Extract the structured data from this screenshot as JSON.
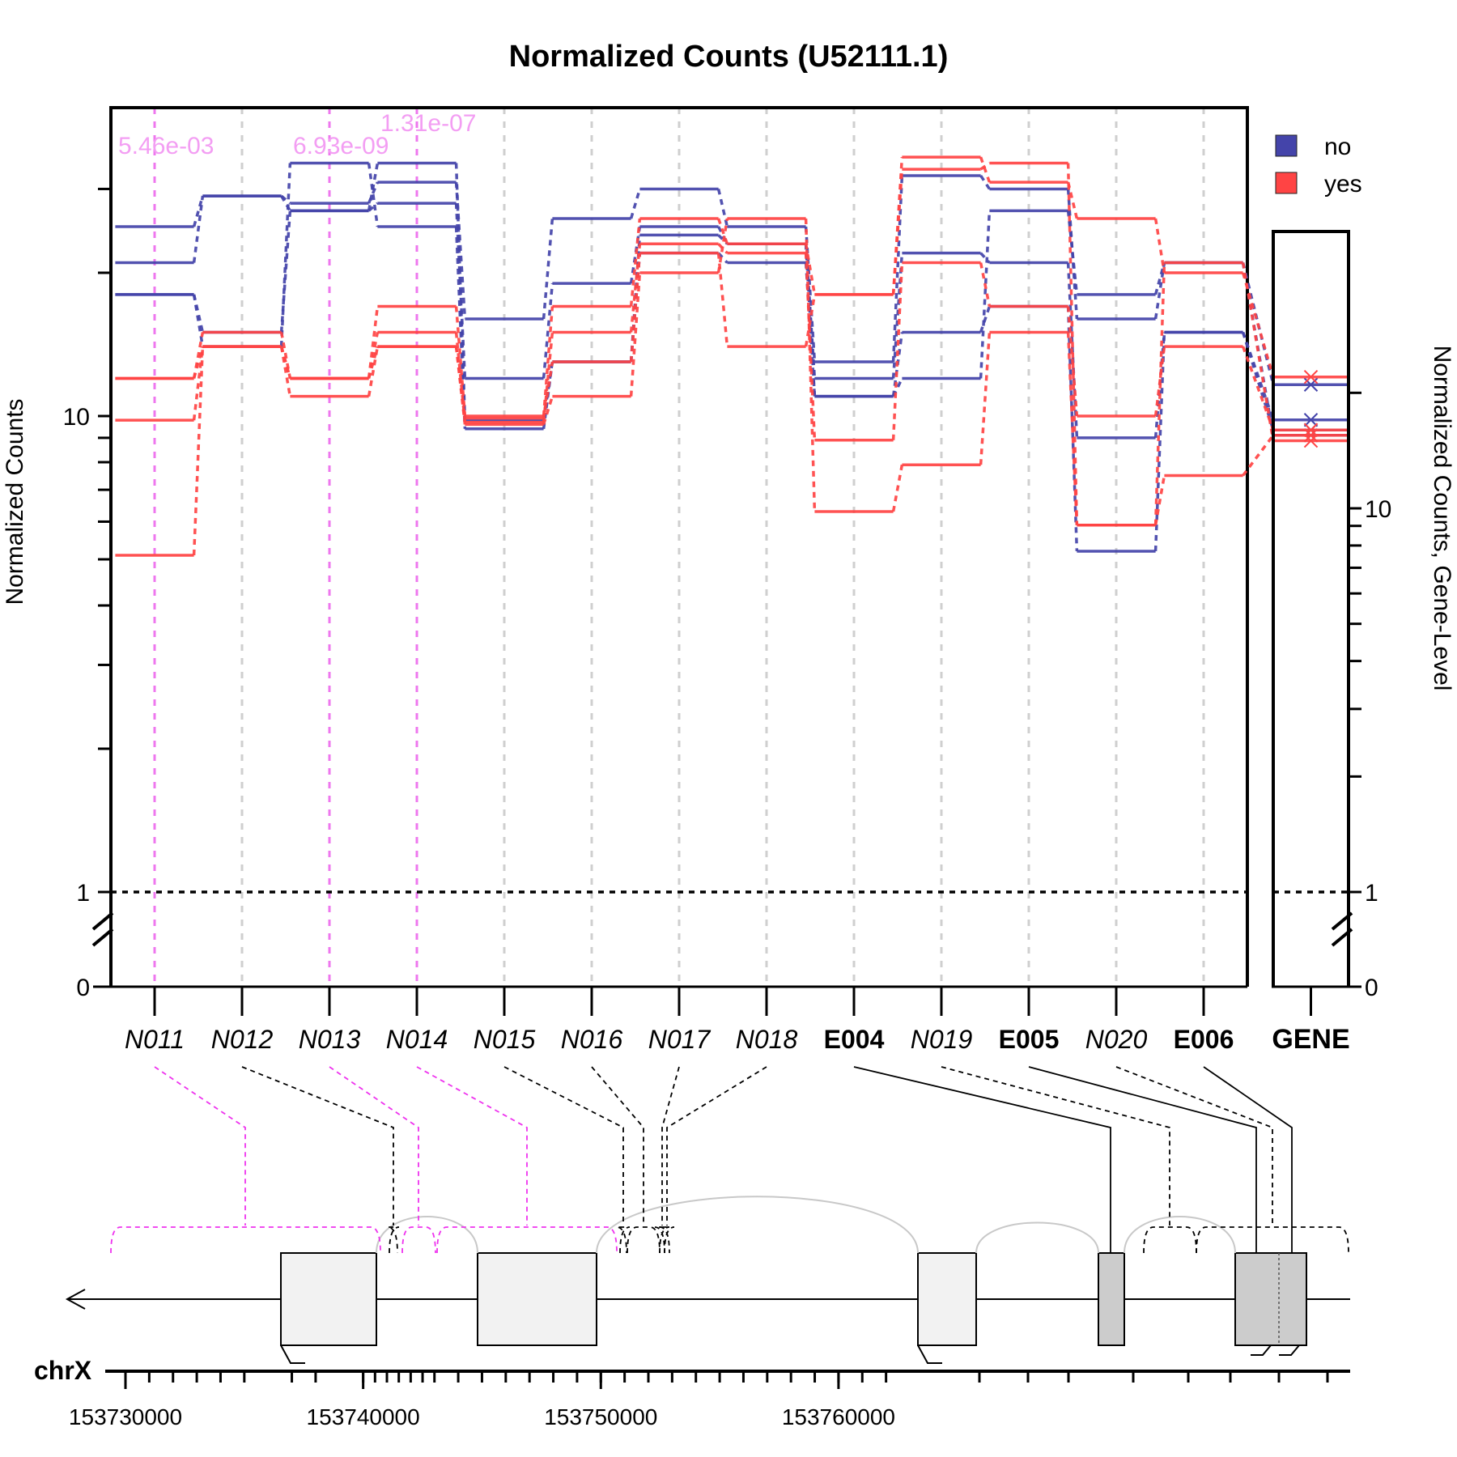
{
  "chart_data": {
    "type": "line",
    "title": "Normalized Counts (U52111.1)",
    "ylabel": "Normalized Counts",
    "ylabel_right": "Normalized Counts, Gene-Level",
    "y_scale": "log-like (broken axis at 1)",
    "y_ticks": [
      "10",
      "1",
      "0"
    ],
    "y_ticks_right": [
      "10",
      "1",
      "0"
    ],
    "categories": [
      "N011",
      "N012",
      "N013",
      "N014",
      "N015",
      "N016",
      "N017",
      "N018",
      "E004",
      "N019",
      "E005",
      "N020",
      "E006"
    ],
    "bold_categories": [
      "E004",
      "E005",
      "E006"
    ],
    "gene_label": "GENE",
    "pvalues": [
      {
        "feature": "N011",
        "label": "5.46e-03"
      },
      {
        "feature": "N013",
        "label": "6.93e-09"
      },
      {
        "feature": "N014",
        "label": "1.31e-07"
      }
    ],
    "legend": {
      "placement": "top-right",
      "entries": [
        {
          "label": "no",
          "color": "#4444aa"
        },
        {
          "label": "yes",
          "color": "#ff4444"
        }
      ]
    },
    "series": [
      {
        "group": "no",
        "values": [
          25,
          29,
          28,
          31,
          16,
          26,
          30,
          25,
          13,
          32,
          30,
          16,
          21
        ],
        "gene": 21
      },
      {
        "group": "no",
        "values": [
          21,
          29,
          27,
          28,
          12,
          19,
          25,
          23,
          12,
          22,
          21,
          9,
          15
        ],
        "gene": 17
      },
      {
        "group": "no",
        "values": [
          18,
          14,
          34,
          25,
          9.4,
          13,
          22,
          21,
          11,
          15,
          17,
          5.2,
          15
        ],
        "gene": 16
      },
      {
        "group": "no",
        "values": [
          18,
          15,
          27,
          34,
          9.8,
          13,
          24,
          23,
          11,
          12,
          27,
          18,
          21
        ],
        "gene": 15.5
      },
      {
        "group": "yes",
        "values": [
          12,
          15,
          12,
          17,
          10,
          17,
          26,
          23,
          18,
          35,
          31,
          26,
          20
        ],
        "gene": 22
      },
      {
        "group": "yes",
        "values": [
          9.8,
          14,
          12,
          15,
          9.7,
          15,
          23,
          22,
          8.9,
          21,
          17,
          10,
          14
        ],
        "gene": 16
      },
      {
        "group": "yes",
        "values": [
          5.1,
          14,
          11,
          14,
          9.6,
          11,
          20,
          26,
          6.3,
          7.9,
          15,
          5.9,
          7.5
        ],
        "gene": 15.5
      },
      {
        "group": "yes",
        "values": [
          12,
          14,
          12,
          14,
          9.9,
          13,
          22,
          14,
          18,
          33,
          34,
          5.9,
          21
        ],
        "gene": 15
      }
    ],
    "chromosome": "chrX",
    "genome_ticks": [
      "153730000",
      "153740000",
      "153750000",
      "153760000"
    ]
  }
}
